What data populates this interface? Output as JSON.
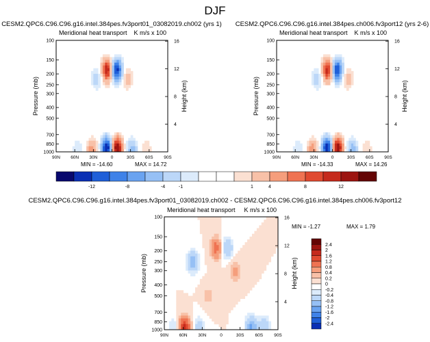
{
  "figure_title": "DJF",
  "panels": [
    {
      "title": "CESM2.QPC6.C96.C96.g16.intel.384pes.fv3port01_03082019.ch002 (yrs 1)",
      "left_string": "Meridional heat transport",
      "right_string": "K m/s x 100",
      "min_label": "MIN = -14.60",
      "max_label": "MAX = 14.72"
    },
    {
      "title": "CESM2.QPC6.C96.C96.g16.intel.384pes.ch006.fv3port12 (yrs 2-6)",
      "left_string": "Meridional heat transport",
      "right_string": "K m/s x 100",
      "min_label": "MIN = -14.33",
      "max_label": "MAX = 14.26"
    },
    {
      "title": "CESM2.QPC6.C96.C96.g16.intel.384pes.fv3port01_03082019.ch002 - CESM2.QPC6.C96.C96.g16.intel.384pes.ch006.fv3port12",
      "left_string": "Meridional heat transport",
      "right_string": "K m/s x 100",
      "min_label": "MIN = -1.27",
      "max_label": "MAX = 1.79"
    }
  ],
  "axes": {
    "ylabel": "Pressure (mb)",
    "ylabel_right": "Height (km)",
    "pressure_ticks": [
      "100",
      "150",
      "200",
      "250",
      "300",
      "400",
      "500",
      "700",
      "850",
      "1000"
    ],
    "height_ticks": [
      "16",
      "12",
      "8",
      "4"
    ],
    "lat_ticks": [
      "90N",
      "60N",
      "30N",
      "0",
      "30S",
      "60S",
      "90S"
    ]
  },
  "colorbar_abs": {
    "labels": [
      "-12",
      "-8",
      "-4",
      "-1",
      "1",
      "4",
      "8",
      "12"
    ],
    "colors": [
      "#08086e",
      "#0a2fb4",
      "#1f5fd8",
      "#3f82e8",
      "#6aa3f0",
      "#96c0f5",
      "#bcd7f8",
      "#dcebfb",
      "#ffffff",
      "#ffffff",
      "#fbe0d2",
      "#f8c1a8",
      "#f59e7c",
      "#ef7352",
      "#e04a30",
      "#c52a1c",
      "#9c1410",
      "#640404"
    ]
  },
  "colorbar_diff": {
    "labels": [
      "2.4",
      "2",
      "1.6",
      "1.2",
      "0.8",
      "0.4",
      "0.2",
      "0",
      "-0.2",
      "-0.4",
      "-0.8",
      "-1.2",
      "-1.6",
      "-2",
      "-2.4"
    ],
    "colors": [
      "#640404",
      "#9c1410",
      "#c52a1c",
      "#e04a30",
      "#ef7352",
      "#f59e7c",
      "#f8c1a8",
      "#fbe0d2",
      "#ffffff",
      "#dcebfb",
      "#bcd7f8",
      "#96c0f5",
      "#6aa3f0",
      "#3f82e8",
      "#1f5fd8",
      "#0a2fb4"
    ]
  },
  "chart_data": [
    {
      "type": "heatmap",
      "title": "CESM2.QPC6.C96.C96.g16.intel.384pes.fv3port01_03082019.ch002 (yrs 1)",
      "xlabel": "",
      "ylabel": "Pressure (mb)",
      "ylabel_right": "Height (km)",
      "x_range": [
        90,
        -90
      ],
      "y_range_mb": [
        100,
        1000
      ],
      "log_pressure": true,
      "min": -14.6,
      "max": 14.72,
      "features": [
        {
          "lat": 7,
          "p": 185,
          "value": 12.5
        },
        {
          "lat": -7,
          "p": 185,
          "value": -13.5
        },
        {
          "lat": 25,
          "p": 220,
          "value": -3
        },
        {
          "lat": -25,
          "p": 220,
          "value": 3
        },
        {
          "lat": 8,
          "p": 930,
          "value": -14.6
        },
        {
          "lat": -8,
          "p": 930,
          "value": 14.72
        },
        {
          "lat": 32,
          "p": 960,
          "value": 5
        },
        {
          "lat": -32,
          "p": 960,
          "value": -5
        },
        {
          "lat": 55,
          "p": 960,
          "value": -2
        },
        {
          "lat": -55,
          "p": 960,
          "value": 2
        }
      ]
    },
    {
      "type": "heatmap",
      "title": "CESM2.QPC6.C96.C96.g16.intel.384pes.ch006.fv3port12 (yrs 2-6)",
      "xlabel": "",
      "ylabel": "Pressure (mb)",
      "ylabel_right": "Height (km)",
      "x_range": [
        90,
        -90
      ],
      "y_range_mb": [
        100,
        1000
      ],
      "log_pressure": true,
      "min": -14.33,
      "max": 14.26,
      "features": [
        {
          "lat": 7,
          "p": 185,
          "value": 12
        },
        {
          "lat": -7,
          "p": 185,
          "value": -13
        },
        {
          "lat": 25,
          "p": 220,
          "value": -3
        },
        {
          "lat": -25,
          "p": 220,
          "value": 3
        },
        {
          "lat": 8,
          "p": 930,
          "value": -14.33
        },
        {
          "lat": -8,
          "p": 930,
          "value": 14.26
        },
        {
          "lat": 32,
          "p": 960,
          "value": 5
        },
        {
          "lat": -32,
          "p": 960,
          "value": -5
        },
        {
          "lat": 55,
          "p": 960,
          "value": -2
        },
        {
          "lat": -55,
          "p": 960,
          "value": 2
        }
      ]
    },
    {
      "type": "heatmap",
      "title": "CESM2.QPC6.C96.C96.g16.intel.384pes.fv3port01_03082019.ch002 - CESM2.QPC6.C96.C96.g16.intel.384pes.ch006.fv3port12",
      "xlabel": "",
      "ylabel": "Pressure (mb)",
      "ylabel_right": "Height (km)",
      "x_range": [
        90,
        -90
      ],
      "y_range_mb": [
        100,
        1000
      ],
      "log_pressure": true,
      "min": -1.27,
      "max": 1.79,
      "features": [
        {
          "lat": 45,
          "p": 250,
          "value": -1
        },
        {
          "lat": 8,
          "p": 190,
          "value": 1
        },
        {
          "lat": -10,
          "p": 190,
          "value": -0.8
        },
        {
          "lat": -22,
          "p": 300,
          "value": 0.5
        },
        {
          "lat": 20,
          "p": 500,
          "value": 0.3
        },
        {
          "lat": 58,
          "p": 965,
          "value": 1.79
        },
        {
          "lat": 35,
          "p": 960,
          "value": -0.6
        },
        {
          "lat": -48,
          "p": 950,
          "value": -1.27
        },
        {
          "lat": -68,
          "p": 955,
          "value": -0.8
        },
        {
          "lat": 75,
          "p": 960,
          "value": -0.4
        }
      ]
    }
  ]
}
